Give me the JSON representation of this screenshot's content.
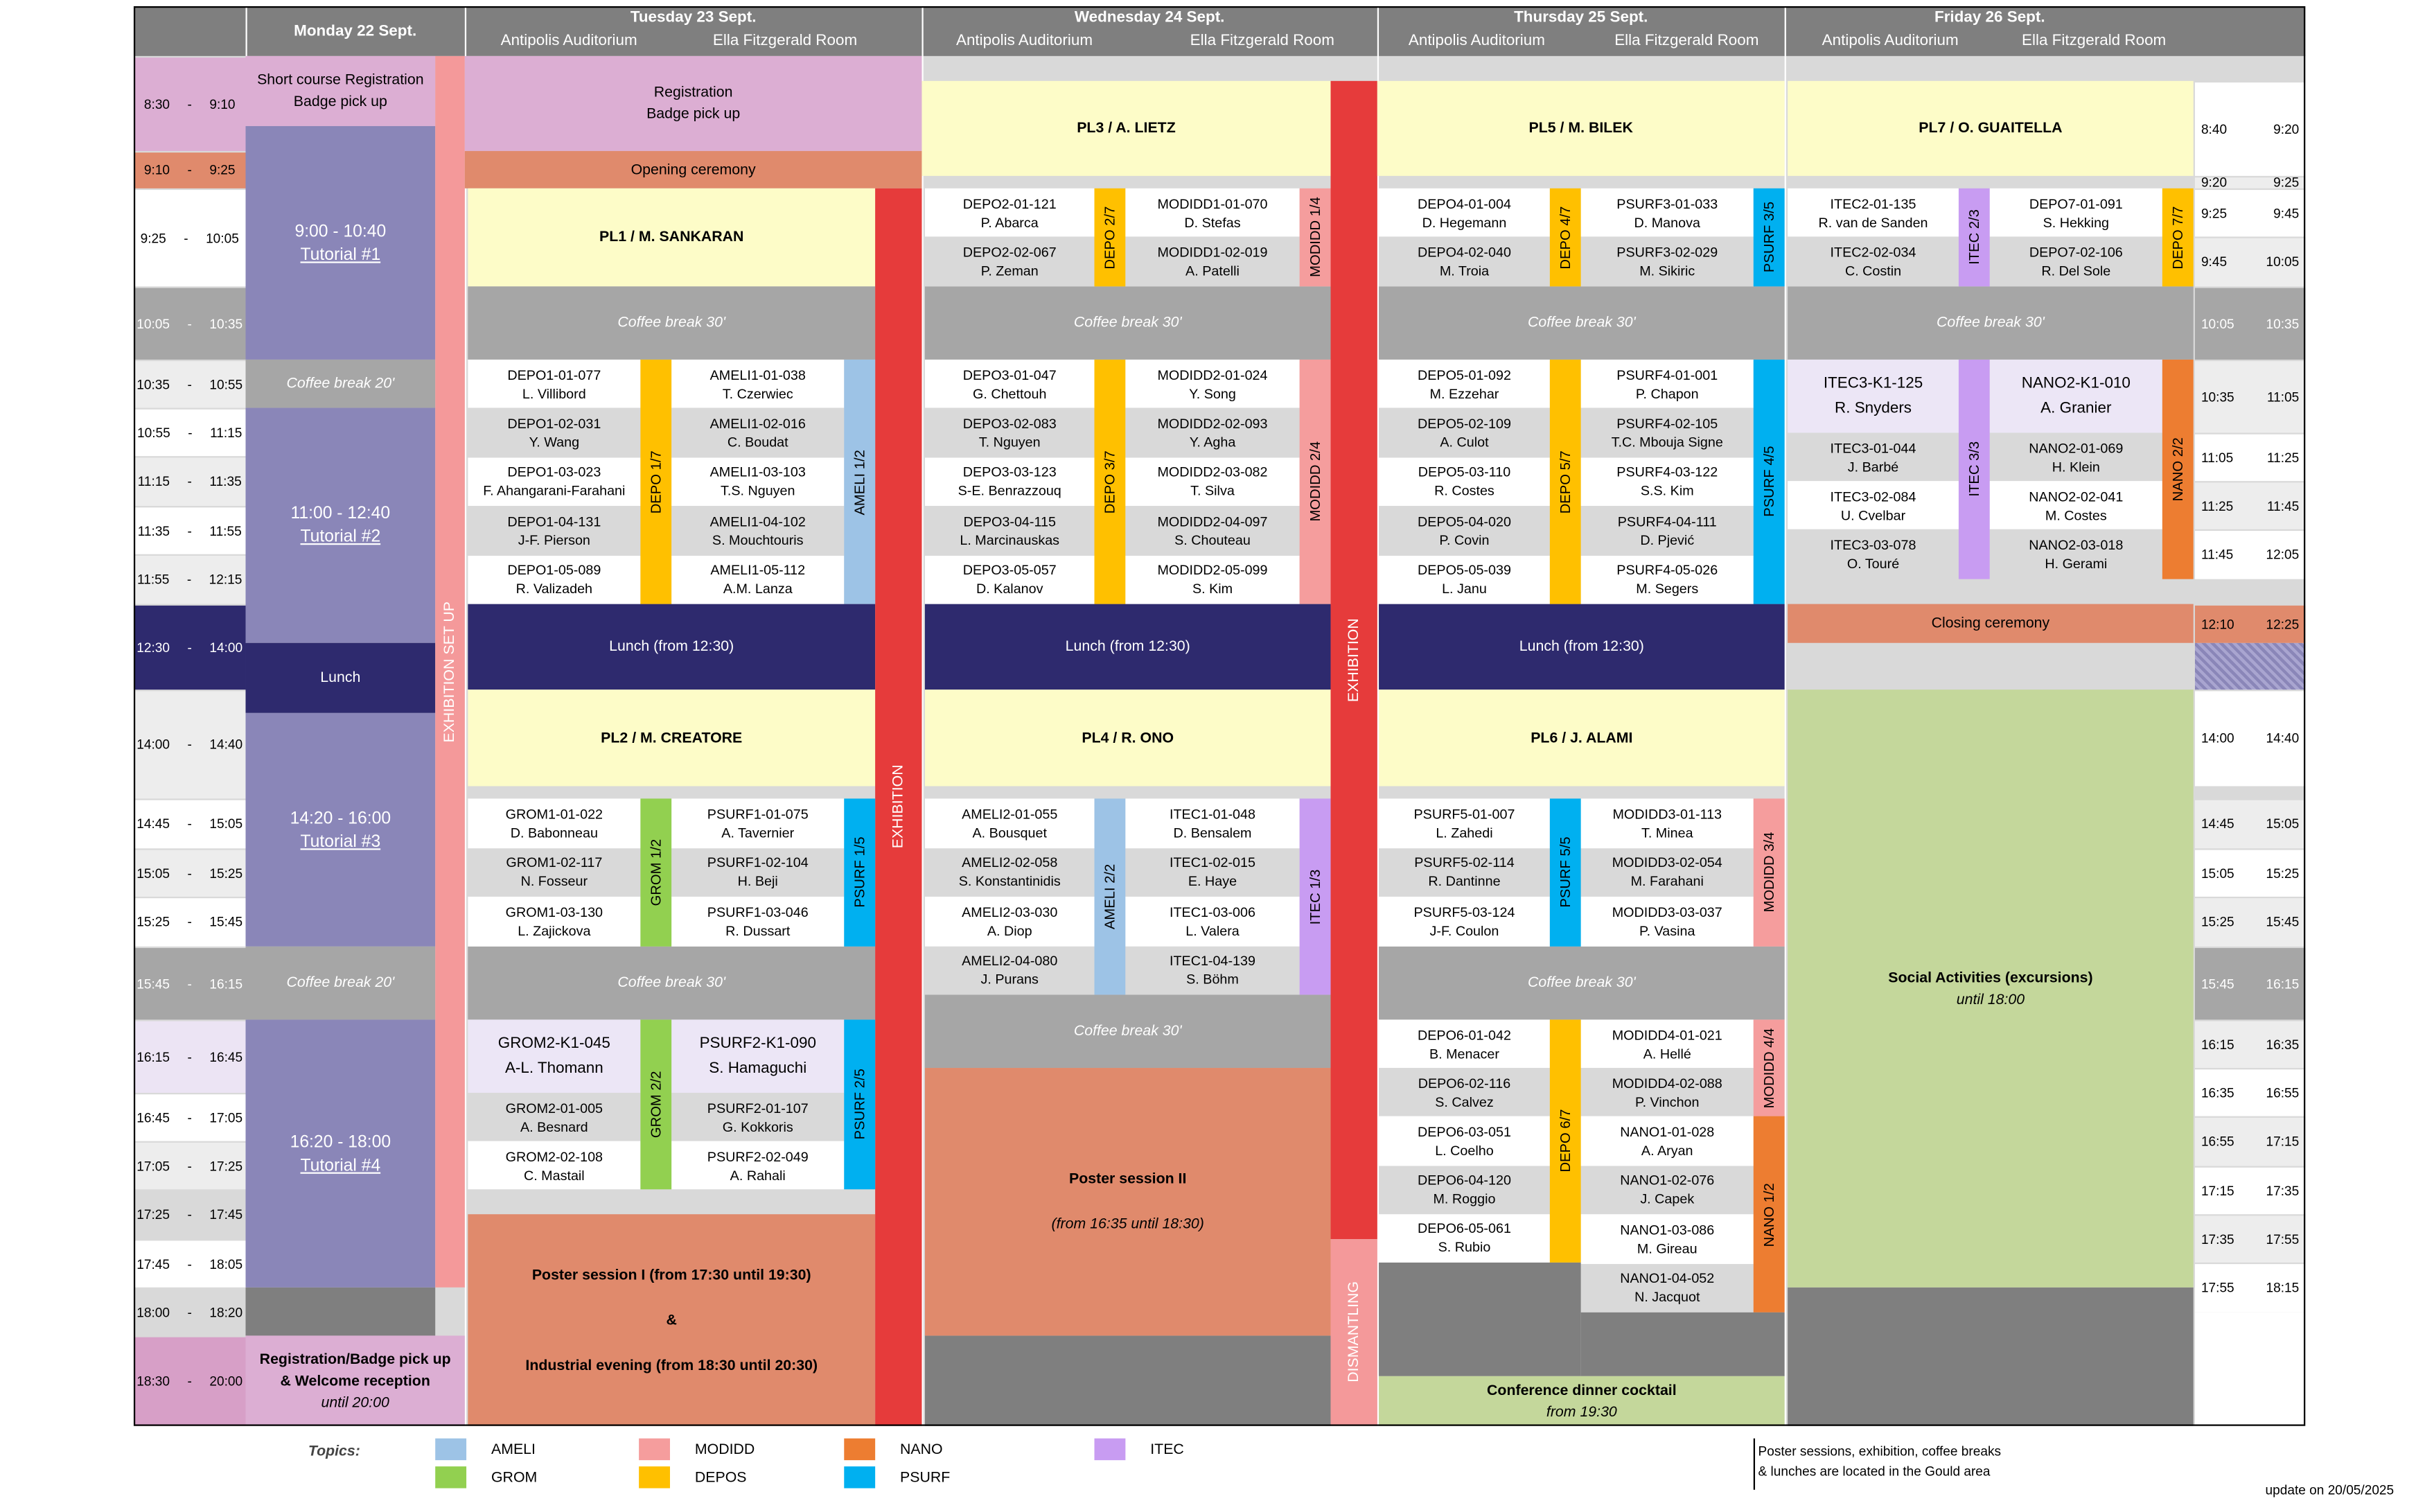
{
  "header": {
    "days": [
      {
        "name": "Monday 22 Sept."
      },
      {
        "name": "Tuesday 23 Sept.",
        "rooms": [
          "Antipolis Auditorium",
          "Ella Fitzgerald Room"
        ]
      },
      {
        "name": "Wednesday 24 Sept.",
        "rooms": [
          "Antipolis Auditorium",
          "Ella Fitzgerald Room"
        ]
      },
      {
        "name": "Thursday 25 Sept.",
        "rooms": [
          "Antipolis Auditorium",
          "Ella Fitzgerald Room"
        ]
      },
      {
        "name": "Friday 26 Sept.",
        "rooms": [
          "Antipolis Auditorium",
          "Ella Fitzgerald Room"
        ]
      }
    ]
  },
  "times_left": [
    "8:30 - 9:10",
    "9:10 - 9:25",
    "9:25 - 10:05",
    "10:05 - 10:35",
    "10:35 - 10:55",
    "10:55 - 11:15",
    "11:15 - 11:35",
    "11:35 - 11:55",
    "11:55 - 12:15",
    "12:30 - 14:00",
    "14:00 - 14:40",
    "14:45 - 15:05",
    "15:05 - 15:25",
    "15:25 - 15:45",
    "15:45 - 16:15",
    "16:15 - 16:45",
    "16:45 - 17:05",
    "17:05 - 17:25",
    "17:25 - 17:45",
    "17:45 - 18:05",
    "18:00 - 18:20",
    "18:30 - 20:00"
  ],
  "times_right": [
    {
      "start": "8:40",
      "end": "9:20"
    },
    {
      "start": "9:20",
      "end": "9:25"
    },
    {
      "start": "9:25",
      "end": "9:45"
    },
    {
      "start": "9:45",
      "end": "10:05"
    },
    {
      "start": "10:05",
      "end": "10:35"
    },
    {
      "start": "10:35",
      "end": "11:05"
    },
    {
      "start": "11:05",
      "end": "11:25"
    },
    {
      "start": "11:25",
      "end": "11:45"
    },
    {
      "start": "11:45",
      "end": "12:05"
    },
    {
      "start": "12:10",
      "end": "12:25"
    },
    {
      "start": "14:00",
      "end": "14:40"
    },
    {
      "start": "14:45",
      "end": "15:05"
    },
    {
      "start": "15:05",
      "end": "15:25"
    },
    {
      "start": "15:25",
      "end": "15:45"
    },
    {
      "start": "15:45",
      "end": "16:15"
    },
    {
      "start": "16:15",
      "end": "16:35"
    },
    {
      "start": "16:35",
      "end": "16:55"
    },
    {
      "start": "16:55",
      "end": "17:15"
    },
    {
      "start": "17:15",
      "end": "17:35"
    },
    {
      "start": "17:35",
      "end": "17:55"
    },
    {
      "start": "17:55",
      "end": "18:15"
    }
  ],
  "blocks": [
    {
      "lines": [
        "Short course Registration",
        "Badge pick up"
      ]
    },
    {
      "lines": [
        "9:00 - 10:40",
        "Tutorial #1"
      ]
    },
    {
      "lines": [
        "Coffee break 20'"
      ]
    },
    {
      "lines": [
        "11:00 - 12:40",
        "Tutorial #2"
      ]
    },
    {
      "lines": [
        "Lunch"
      ]
    },
    {
      "lines": [
        "14:20 - 16:00",
        "Tutorial #3"
      ]
    },
    {
      "lines": [
        "Coffee break 20'"
      ]
    },
    {
      "lines": [
        "16:20 - 18:00",
        "Tutorial #4"
      ]
    },
    {
      "lines": [
        "Registration/Badge pick up",
        "& Welcome reception",
        "until 20:00"
      ]
    },
    {
      "lines": [
        "EXHIBITION SET UP"
      ]
    },
    {
      "lines": [
        "Registration",
        "Badge pick up"
      ]
    },
    {
      "lines": [
        "Opening ceremony"
      ]
    },
    {
      "lines": [
        "PL1 / M. SANKARAN"
      ]
    },
    {
      "lines": [
        "Coffee break 30'"
      ]
    },
    {
      "lines": [
        "Lunch (from 12:30)"
      ]
    },
    {
      "lines": [
        "PL2 / M. CREATORE"
      ]
    },
    {
      "lines": [
        "Coffee break 30'"
      ]
    },
    {
      "lines": [
        "Poster session I (from 17:30 until 19:30)",
        "&",
        "Industrial evening (from 18:30 until 20:30)"
      ]
    },
    {
      "lines": [
        "EXHIBITION"
      ]
    },
    {
      "lines": [
        "PL3 / A. LIETZ"
      ]
    },
    {
      "lines": [
        "Coffee break 30'"
      ]
    },
    {
      "lines": [
        "Lunch (from 12:30)"
      ]
    },
    {
      "lines": [
        "PL4 / R. ONO"
      ]
    },
    {
      "lines": [
        "Coffee break 30'"
      ]
    },
    {
      "lines": [
        "Poster session II",
        "(from 16:35 until 18:30)"
      ]
    },
    {
      "lines": [
        "EXHIBITION"
      ]
    },
    {
      "lines": [
        "DISMANTLING"
      ]
    },
    {
      "lines": [
        "PL5 / M. BILEK"
      ]
    },
    {
      "lines": [
        "Coffee break 30'"
      ]
    },
    {
      "lines": [
        "Lunch (from 12:30)"
      ]
    },
    {
      "lines": [
        "PL6 / J. ALAMI"
      ]
    },
    {
      "lines": [
        "Coffee break 30'"
      ]
    },
    {
      "lines": [
        "Conference dinner cocktail",
        "from 19:30"
      ]
    },
    {
      "lines": [
        "PL7 / O. GUAITELLA"
      ]
    },
    {
      "lines": [
        "Coffee break 30'"
      ]
    },
    {
      "lines": [
        "Closing ceremony"
      ]
    },
    {
      "lines": [
        "Social Activities (excursions)",
        "until 18:00"
      ]
    }
  ],
  "sessions": [
    {
      "label": "DEPO 1/7",
      "talks": [
        {
          "code": "DEPO1-01-077",
          "author": "L. Villibord"
        },
        {
          "code": "DEPO1-02-031",
          "author": "Y. Wang"
        },
        {
          "code": "DEPO1-03-023",
          "author": "F. Ahangarani-Farahani"
        },
        {
          "code": "DEPO1-04-131",
          "author": "J-F. Pierson"
        },
        {
          "code": "DEPO1-05-089",
          "author": "R. Valizadeh"
        }
      ]
    },
    {
      "label": "AMELI 1/2",
      "talks": [
        {
          "code": "AMELI1-01-038",
          "author": "T. Czerwiec"
        },
        {
          "code": "AMELI1-02-016",
          "author": "C. Boudat"
        },
        {
          "code": "AMELI1-03-103",
          "author": "T.S. Nguyen"
        },
        {
          "code": "AMELI1-04-102",
          "author": "S. Mouchtouris"
        },
        {
          "code": "AMELI1-05-112",
          "author": "A.M. Lanza"
        }
      ]
    },
    {
      "label": "GROM 1/2",
      "talks": [
        {
          "code": "GROM1-01-022",
          "author": "D. Babonneau"
        },
        {
          "code": "GROM1-02-117",
          "author": "N. Fosseur"
        },
        {
          "code": "GROM1-03-130",
          "author": "L. Zajickova"
        }
      ]
    },
    {
      "label": "PSURF 1/5",
      "talks": [
        {
          "code": "PSURF1-01-075",
          "author": "A. Tavernier"
        },
        {
          "code": "PSURF1-02-104",
          "author": "H. Beji"
        },
        {
          "code": "PSURF1-03-046",
          "author": "R. Dussart"
        }
      ]
    },
    {
      "label": "GROM 2/2",
      "talks": [
        {
          "code": "GROM2-K1-045",
          "author": "A-L. Thomann"
        },
        {
          "code": "GROM2-01-005",
          "author": "A. Besnard"
        },
        {
          "code": "GROM2-02-108",
          "author": "C. Mastail"
        }
      ]
    },
    {
      "label": "PSURF 2/5",
      "talks": [
        {
          "code": "PSURF2-K1-090",
          "author": "S. Hamaguchi"
        },
        {
          "code": "PSURF2-01-107",
          "author": "G. Kokkoris"
        },
        {
          "code": "PSURF2-02-049",
          "author": "A. Rahali"
        }
      ]
    },
    {
      "label": "DEPO 2/7",
      "talks": [
        {
          "code": "DEPO2-01-121",
          "author": "P. Abarca"
        },
        {
          "code": "DEPO2-02-067",
          "author": "P. Zeman"
        }
      ]
    },
    {
      "label": "MODIDD 1/4",
      "talks": [
        {
          "code": "MODIDD1-01-070",
          "author": "D. Stefas"
        },
        {
          "code": "MODIDD1-02-019",
          "author": "A. Patelli"
        }
      ]
    },
    {
      "label": "DEPO 3/7",
      "talks": [
        {
          "code": "DEPO3-01-047",
          "author": "G. Chettouh"
        },
        {
          "code": "DEPO3-02-083",
          "author": "T. Nguyen"
        },
        {
          "code": "DEPO3-03-123",
          "author": "S-E. Benrazzouq"
        },
        {
          "code": "DEPO3-04-115",
          "author": "L. Marcinauskas"
        },
        {
          "code": "DEPO3-05-057",
          "author": "D. Kalanov"
        }
      ]
    },
    {
      "label": "MODIDD 2/4",
      "talks": [
        {
          "code": "MODIDD2-01-024",
          "author": "Y. Song"
        },
        {
          "code": "MODIDD2-02-093",
          "author": "Y. Agha"
        },
        {
          "code": "MODIDD2-03-082",
          "author": "T. Silva"
        },
        {
          "code": "MODIDD2-04-097",
          "author": "S. Chouteau"
        },
        {
          "code": "MODIDD2-05-099",
          "author": "S. Kim"
        }
      ]
    },
    {
      "label": "AMELI 2/2",
      "talks": [
        {
          "code": "AMELI2-01-055",
          "author": "A. Bousquet"
        },
        {
          "code": "AMELI2-02-058",
          "author": "S. Konstantinidis"
        },
        {
          "code": "AMELI2-03-030",
          "author": "A. Diop"
        },
        {
          "code": "AMELI2-04-080",
          "author": "J. Purans"
        }
      ]
    },
    {
      "label": "ITEC 1/3",
      "talks": [
        {
          "code": "ITEC1-01-048",
          "author": "D. Bensalem"
        },
        {
          "code": "ITEC1-02-015",
          "author": "E. Haye"
        },
        {
          "code": "ITEC1-03-006",
          "author": "L. Valera"
        },
        {
          "code": "ITEC1-04-139",
          "author": "S. Böhm"
        }
      ]
    },
    {
      "label": "DEPO 4/7",
      "talks": [
        {
          "code": "DEPO4-01-004",
          "author": "D. Hegemann"
        },
        {
          "code": "DEPO4-02-040",
          "author": "M. Troia"
        }
      ]
    },
    {
      "label": "PSURF 3/5",
      "talks": [
        {
          "code": "PSURF3-01-033",
          "author": "D. Manova"
        },
        {
          "code": "PSURF3-02-029",
          "author": "M. Sikiric"
        }
      ]
    },
    {
      "label": "DEPO 5/7",
      "talks": [
        {
          "code": "DEPO5-01-092",
          "author": "M. Ezzehar"
        },
        {
          "code": "DEPO5-02-109",
          "author": "A. Culot"
        },
        {
          "code": "DEPO5-03-110",
          "author": "R. Costes"
        },
        {
          "code": "DEPO5-04-020",
          "author": "P. Covin"
        },
        {
          "code": "DEPO5-05-039",
          "author": "L. Janu"
        }
      ]
    },
    {
      "label": "PSURF 4/5",
      "talks": [
        {
          "code": "PSURF4-01-001",
          "author": "P. Chapon"
        },
        {
          "code": "PSURF4-02-105",
          "author": "T.C. Mbouja Signe"
        },
        {
          "code": "PSURF4-03-122",
          "author": "S.S. Kim"
        },
        {
          "code": "PSURF4-04-111",
          "author": "D. Pjević"
        },
        {
          "code": "PSURF4-05-026",
          "author": "M. Segers"
        }
      ]
    },
    {
      "label": "PSURF 5/5",
      "talks": [
        {
          "code": "PSURF5-01-007",
          "author": "L. Zahedi"
        },
        {
          "code": "PSURF5-02-114",
          "author": "R. Dantinne"
        },
        {
          "code": "PSURF5-03-124",
          "author": "J-F. Coulon"
        }
      ]
    },
    {
      "label": "MODIDD 3/4",
      "talks": [
        {
          "code": "MODIDD3-01-113",
          "author": "T. Minea"
        },
        {
          "code": "MODIDD3-02-054",
          "author": "M. Farahani"
        },
        {
          "code": "MODIDD3-03-037",
          "author": "P. Vasina"
        }
      ]
    },
    {
      "label": "DEPO 6/7",
      "talks": [
        {
          "code": "DEPO6-01-042",
          "author": "B. Menacer"
        },
        {
          "code": "DEPO6-02-116",
          "author": "S. Calvez"
        },
        {
          "code": "DEPO6-03-051",
          "author": "L. Coelho"
        },
        {
          "code": "DEPO6-04-120",
          "author": "M. Roggio"
        },
        {
          "code": "DEPO6-05-061",
          "author": "S. Rubio"
        }
      ]
    },
    {
      "label": "MODIDD 4/4",
      "talks": [
        {
          "code": "MODIDD4-01-021",
          "author": "A. Hellé"
        },
        {
          "code": "MODIDD4-02-088",
          "author": "P. Vinchon"
        }
      ]
    },
    {
      "label": "NANO 1/2",
      "talks": [
        {
          "code": "NANO1-01-028",
          "author": "A. Aryan"
        },
        {
          "code": "NANO1-02-076",
          "author": "J. Capek"
        },
        {
          "code": "NANO1-03-086",
          "author": "M. Gireau"
        },
        {
          "code": "NANO1-04-052",
          "author": "N. Jacquot"
        }
      ]
    },
    {
      "label": "ITEC 2/3",
      "talks": [
        {
          "code": "ITEC2-01-135",
          "author": "R. van de Sanden"
        },
        {
          "code": "ITEC2-02-034",
          "author": "C. Costin"
        }
      ]
    },
    {
      "label": "DEPO 7/7",
      "talks": [
        {
          "code": "DEPO7-01-091",
          "author": "S. Hekking"
        },
        {
          "code": "DEPO7-02-106",
          "author": "R. Del Sole"
        }
      ]
    },
    {
      "label": "ITEC 3/3",
      "talks": [
        {
          "code": "ITEC3-K1-125",
          "author": "R. Snyders"
        },
        {
          "code": "ITEC3-01-044",
          "author": "J. Barbé"
        },
        {
          "code": "ITEC3-02-084",
          "author": "U. Cvelbar"
        },
        {
          "code": "ITEC3-03-078",
          "author": "O. Touré"
        }
      ]
    },
    {
      "label": "NANO 2/2",
      "talks": [
        {
          "code": "NANO2-K1-010",
          "author": "A. Granier"
        },
        {
          "code": "NANO2-01-069",
          "author": "H. Klein"
        },
        {
          "code": "NANO2-02-041",
          "author": "M. Costes"
        },
        {
          "code": "NANO2-03-018",
          "author": "H. Gerami"
        }
      ]
    }
  ],
  "legend": {
    "title": "Topics:",
    "items": [
      "AMELI",
      "GROM",
      "MODIDD",
      "DEPOS",
      "NANO",
      "PSURF",
      "ITEC"
    ]
  },
  "note": [
    "Poster sessions, exhibition, coffee breaks",
    "& lunches are located in the Gould area"
  ],
  "update": "update on 20/05/2025"
}
